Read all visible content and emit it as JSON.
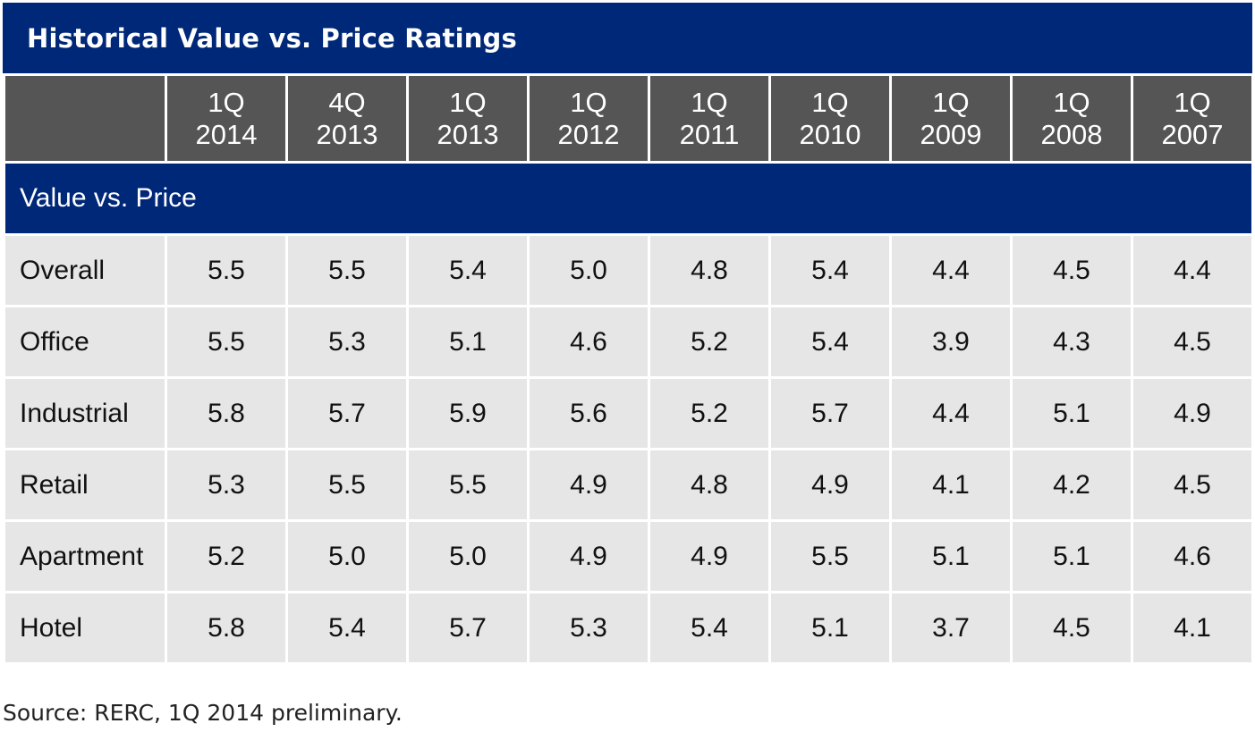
{
  "title": "Historical Value vs. Price Ratings",
  "source": "Source: RERC, 1Q 2014 preliminary.",
  "chart_data": {
    "type": "table",
    "title": "Historical Value vs. Price Ratings",
    "columns": [
      {
        "q": "1Q",
        "year": "2014"
      },
      {
        "q": "4Q",
        "year": "2013"
      },
      {
        "q": "1Q",
        "year": "2013"
      },
      {
        "q": "1Q",
        "year": "2012"
      },
      {
        "q": "1Q",
        "year": "2011"
      },
      {
        "q": "1Q",
        "year": "2010"
      },
      {
        "q": "1Q",
        "year": "2009"
      },
      {
        "q": "1Q",
        "year": "2008"
      },
      {
        "q": "1Q",
        "year": "2007"
      }
    ],
    "section": "Value vs. Price",
    "rows": [
      {
        "label": "Overall",
        "values": [
          "5.5",
          "5.5",
          "5.4",
          "5.0",
          "4.8",
          "5.4",
          "4.4",
          "4.5",
          "4.4"
        ]
      },
      {
        "label": "Office",
        "values": [
          "5.5",
          "5.3",
          "5.1",
          "4.6",
          "5.2",
          "5.4",
          "3.9",
          "4.3",
          "4.5"
        ]
      },
      {
        "label": "Industrial",
        "values": [
          "5.8",
          "5.7",
          "5.9",
          "5.6",
          "5.2",
          "5.7",
          "4.4",
          "5.1",
          "4.9"
        ]
      },
      {
        "label": "Retail",
        "values": [
          "5.3",
          "5.5",
          "5.5",
          "4.9",
          "4.8",
          "4.9",
          "4.1",
          "4.2",
          "4.5"
        ]
      },
      {
        "label": "Apartment",
        "values": [
          "5.2",
          "5.0",
          "5.0",
          "4.9",
          "4.9",
          "5.5",
          "5.1",
          "5.1",
          "4.6"
        ]
      },
      {
        "label": "Hotel",
        "values": [
          "5.8",
          "5.4",
          "5.7",
          "5.3",
          "5.4",
          "5.1",
          "3.7",
          "4.5",
          "4.1"
        ]
      }
    ]
  },
  "colors": {
    "header_blue": "#002878",
    "header_gray": "#555555",
    "cell_bg": "#e6e6e6"
  }
}
